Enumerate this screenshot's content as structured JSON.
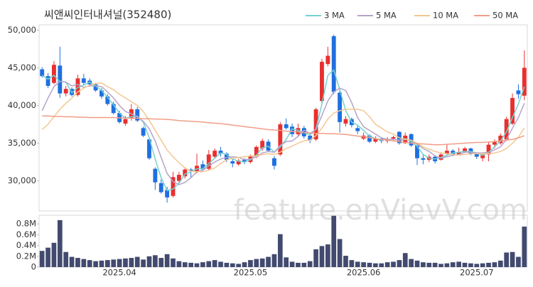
{
  "chart_data": [
    {
      "type": "candlestick",
      "title": "씨앤씨인터내셔널(352480)",
      "watermark": "feature.enVievV.com",
      "up_color": "#e8302f",
      "down_color": "#1f6fe0",
      "grid": false,
      "ylim": [
        26000,
        50700
      ],
      "yticks": [
        {
          "value": 30000,
          "label": "30,000"
        },
        {
          "value": 35000,
          "label": "35,000"
        },
        {
          "value": 40000,
          "label": "40,000"
        },
        {
          "value": 45000,
          "label": "45,000"
        },
        {
          "value": 50000,
          "label": "50,000"
        }
      ],
      "open": [
        44800,
        43900,
        43000,
        45300,
        41600,
        42200,
        41400,
        43600,
        43300,
        42800,
        42000,
        41200,
        40200,
        39000,
        37600,
        38300,
        39500,
        37000,
        35500,
        31600,
        29700,
        28800,
        28000,
        30000,
        30600,
        31500,
        31200,
        32200,
        31600,
        33200,
        34000,
        33600,
        32600,
        32200,
        32800,
        32500,
        33200,
        34300,
        35200,
        33000,
        33500,
        37500,
        37200,
        36200,
        37000,
        36000,
        35500,
        40600,
        45500,
        49200,
        41700,
        37600,
        38200,
        37000,
        35600,
        36000,
        35200,
        35600,
        35300,
        35600,
        36500,
        35000,
        36200,
        34700,
        33000,
        32800,
        33200,
        32800,
        33600,
        34000,
        33500,
        33900,
        34300,
        33600,
        33000,
        33500,
        34800,
        35000,
        35500,
        37600,
        42000,
        41300
      ],
      "high": [
        45100,
        44300,
        45900,
        47800,
        42600,
        42400,
        44100,
        44200,
        43600,
        43000,
        42300,
        41500,
        40500,
        39300,
        38600,
        40200,
        39800,
        37200,
        35600,
        31800,
        30200,
        29200,
        31200,
        31200,
        31800,
        31700,
        33600,
        32700,
        34100,
        34300,
        34500,
        33800,
        32900,
        32900,
        33000,
        33500,
        34700,
        35600,
        35500,
        33300,
        37800,
        38300,
        37600,
        37600,
        37300,
        36300,
        39700,
        46200,
        47800,
        49400,
        42000,
        38600,
        38400,
        37300,
        36400,
        36200,
        35900,
        35800,
        35800,
        36000,
        36600,
        36400,
        36300,
        35000,
        33400,
        33500,
        33400,
        33800,
        34900,
        34200,
        34400,
        34500,
        34400,
        33800,
        33700,
        35200,
        35500,
        36300,
        38500,
        41600,
        42800,
        47300
      ],
      "low": [
        43700,
        42300,
        42800,
        41000,
        41200,
        41200,
        41200,
        42700,
        42500,
        41800,
        40900,
        40000,
        38800,
        37600,
        37300,
        38000,
        37800,
        35800,
        32800,
        28800,
        28300,
        27100,
        27800,
        29600,
        30300,
        30400,
        31000,
        31300,
        31400,
        33000,
        33200,
        32500,
        31800,
        32000,
        32200,
        32300,
        33000,
        34000,
        33800,
        31500,
        33300,
        36800,
        35800,
        35900,
        35600,
        35000,
        35300,
        40000,
        45200,
        41500,
        36400,
        37200,
        37100,
        36200,
        35400,
        35000,
        35000,
        35000,
        35000,
        35400,
        34800,
        34900,
        34500,
        32100,
        32200,
        32500,
        32300,
        32700,
        33400,
        33300,
        33400,
        33700,
        33400,
        32900,
        32600,
        32600,
        34300,
        34800,
        35300,
        37400,
        40900,
        40700
      ],
      "close": [
        43900,
        42600,
        45400,
        41600,
        42200,
        41400,
        43600,
        43000,
        42800,
        42000,
        41200,
        40200,
        39000,
        37800,
        38200,
        39500,
        38000,
        36000,
        33000,
        29800,
        28500,
        27800,
        30500,
        30800,
        31500,
        31300,
        32000,
        31500,
        33500,
        34000,
        33600,
        32800,
        32300,
        32700,
        32500,
        33300,
        34500,
        35300,
        34000,
        32000,
        37500,
        37000,
        36200,
        37000,
        35900,
        35400,
        39500,
        45800,
        46600,
        41800,
        37800,
        38200,
        37400,
        36600,
        36000,
        35200,
        35600,
        35300,
        35500,
        35800,
        35000,
        36000,
        34700,
        33000,
        32800,
        33200,
        32600,
        33500,
        34000,
        33500,
        33800,
        34300,
        33600,
        33200,
        33500,
        34800,
        35200,
        36000,
        38200,
        41000,
        41500,
        45000
      ],
      "series": [
        {
          "name": "3 MA",
          "color": "#73d2d0",
          "values": [
            44000,
            43500,
            44000,
            43200,
            43100,
            41700,
            42400,
            42700,
            43100,
            42600,
            42000,
            41100,
            40100,
            39000,
            38300,
            38500,
            38600,
            37800,
            35700,
            32900,
            30400,
            28700,
            28900,
            29700,
            30900,
            31200,
            31600,
            31600,
            32300,
            33000,
            33700,
            33500,
            32900,
            32600,
            32500,
            32800,
            33400,
            34400,
            34600,
            33800,
            34500,
            35500,
            36900,
            36700,
            36400,
            36100,
            36900,
            40200,
            44000,
            44700,
            42100,
            39300,
            37800,
            37400,
            36700,
            35900,
            35600,
            35400,
            35500,
            35500,
            35400,
            35600,
            35200,
            34600,
            33500,
            33000,
            32900,
            33100,
            33400,
            33700,
            33800,
            33900,
            33900,
            33700,
            33400,
            33800,
            34500,
            35300,
            36500,
            38400,
            40200,
            42500
          ]
        },
        {
          "name": "5 MA",
          "color": "#b5a3c9",
          "values": [
            39300,
            41000,
            42500,
            43200,
            43100,
            42600,
            42800,
            42400,
            42600,
            42600,
            42500,
            41800,
            41000,
            40000,
            39200,
            38900,
            38500,
            37900,
            36900,
            35300,
            33100,
            31000,
            29900,
            29500,
            29800,
            30400,
            31200,
            31400,
            32000,
            32500,
            32900,
            33100,
            33200,
            33100,
            32800,
            32900,
            33200,
            33700,
            33900,
            33800,
            34700,
            35200,
            35300,
            35900,
            36700,
            36300,
            36800,
            38700,
            40600,
            41800,
            42300,
            42000,
            40400,
            38400,
            37200,
            36700,
            36200,
            35700,
            35500,
            35500,
            35400,
            35500,
            35400,
            34900,
            34300,
            33900,
            33300,
            33000,
            33200,
            33400,
            33500,
            33800,
            33800,
            33700,
            33700,
            33800,
            34100,
            34500,
            35500,
            37000,
            38400,
            40300
          ]
        },
        {
          "name": "10 MA",
          "color": "#f3c792",
          "values": [
            36800,
            37500,
            38500,
            39500,
            40300,
            41000,
            41800,
            42300,
            42700,
            42900,
            43000,
            42500,
            42100,
            41500,
            41000,
            40500,
            40000,
            39200,
            38000,
            36700,
            35400,
            34100,
            33200,
            32400,
            31700,
            31300,
            31200,
            31200,
            31400,
            31700,
            32300,
            32800,
            33000,
            33100,
            33200,
            33300,
            33300,
            33500,
            33600,
            33500,
            33800,
            34300,
            34600,
            35000,
            35300,
            35400,
            36000,
            37000,
            38200,
            39000,
            39300,
            39500,
            39500,
            39500,
            39300,
            38500,
            37500,
            37000,
            36500,
            36200,
            35700,
            35500,
            35400,
            35000,
            34500,
            34200,
            33900,
            33700,
            33600,
            33500,
            33400,
            33500,
            33600,
            33600,
            33600,
            33600,
            33700,
            33900,
            34300,
            35000,
            35800,
            37000
          ]
        },
        {
          "name": "50 MA",
          "color": "#f09e88",
          "values": [
            38600,
            38600,
            38550,
            38550,
            38500,
            38500,
            38450,
            38450,
            38400,
            38400,
            38400,
            38400,
            38400,
            38350,
            38350,
            38300,
            38300,
            38250,
            38250,
            38200,
            38200,
            38150,
            38100,
            38000,
            37950,
            37900,
            37850,
            37800,
            37700,
            37650,
            37600,
            37500,
            37400,
            37300,
            37200,
            37100,
            37000,
            36900,
            36800,
            36750,
            36700,
            36600,
            36550,
            36500,
            36400,
            36350,
            36300,
            36300,
            36250,
            36250,
            36200,
            36150,
            36050,
            35950,
            35850,
            35750,
            35600,
            35500,
            35400,
            35300,
            35200,
            35100,
            35000,
            34950,
            34900,
            34850,
            34800,
            34800,
            34850,
            34900,
            34950,
            35000,
            35050,
            35100,
            35100,
            35150,
            35200,
            35300,
            35400,
            35500,
            35700,
            36000
          ]
        }
      ]
    },
    {
      "type": "bar",
      "color": "#434a6f",
      "ylim": [
        0,
        960000
      ],
      "yticks": [
        0,
        {
          "value": 200000,
          "label": "0.2M"
        },
        {
          "value": 400000,
          "label": "0.4M"
        },
        {
          "value": 600000,
          "label": "0.6M"
        },
        {
          "value": 800000,
          "label": "0.8M"
        }
      ],
      "categories": [
        null,
        null,
        null,
        null,
        null,
        null,
        null,
        null,
        null,
        null,
        null,
        null,
        null,
        "2025.04",
        null,
        null,
        null,
        null,
        null,
        null,
        null,
        null,
        null,
        null,
        null,
        null,
        null,
        null,
        null,
        null,
        null,
        null,
        null,
        null,
        null,
        "2025.05",
        null,
        null,
        null,
        null,
        null,
        null,
        null,
        null,
        null,
        null,
        null,
        null,
        null,
        null,
        null,
        null,
        null,
        null,
        "2025.06",
        null,
        null,
        null,
        null,
        null,
        null,
        null,
        null,
        null,
        null,
        null,
        null,
        null,
        null,
        null,
        null,
        null,
        null,
        "2025.07",
        null,
        null,
        null,
        null,
        null,
        null,
        null,
        null
      ],
      "values": [
        300000,
        360000,
        450000,
        870000,
        280000,
        190000,
        170000,
        150000,
        130000,
        110000,
        120000,
        130000,
        140000,
        150000,
        160000,
        170000,
        190000,
        140000,
        200000,
        220000,
        170000,
        240000,
        160000,
        110000,
        90000,
        80000,
        70000,
        90000,
        110000,
        130000,
        100000,
        80000,
        70000,
        60000,
        90000,
        130000,
        150000,
        160000,
        190000,
        240000,
        610000,
        180000,
        100000,
        80000,
        80000,
        110000,
        330000,
        390000,
        420000,
        950000,
        520000,
        210000,
        130000,
        100000,
        90000,
        80000,
        70000,
        70000,
        90000,
        100000,
        130000,
        260000,
        150000,
        120000,
        90000,
        80000,
        80000,
        60000,
        70000,
        90000,
        100000,
        80000,
        70000,
        60000,
        70000,
        80000,
        90000,
        120000,
        270000,
        280000,
        190000,
        750000
      ]
    }
  ]
}
